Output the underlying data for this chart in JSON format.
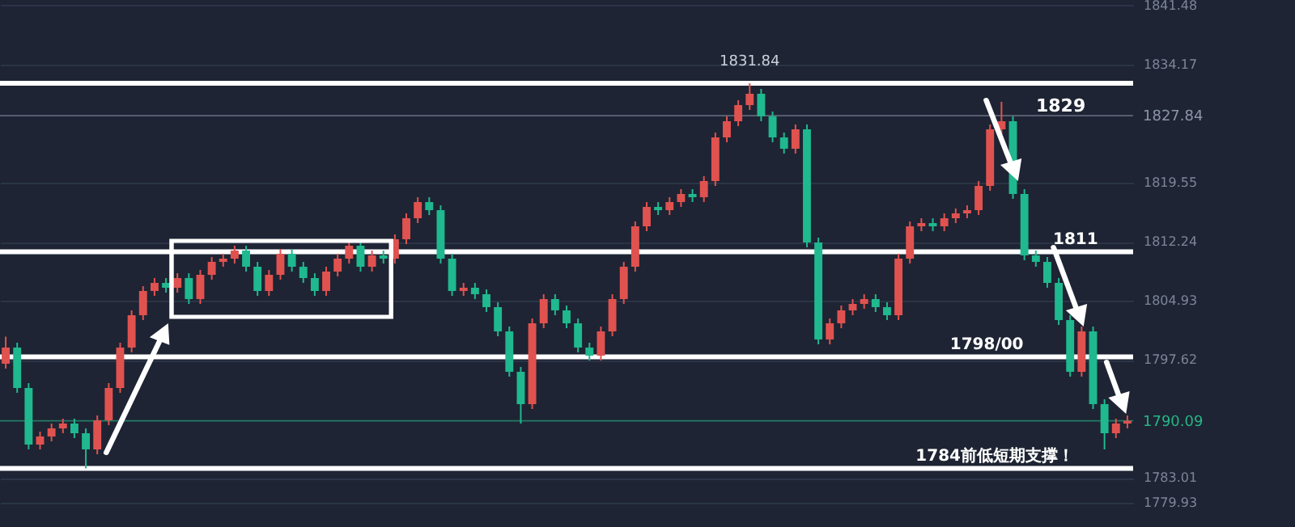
{
  "chart_data": {
    "type": "candlestick",
    "categories": [
      null,
      null,
      null,
      null,
      null,
      null,
      null,
      null,
      null,
      null,
      null,
      null,
      null,
      null,
      null,
      null,
      null,
      null,
      null,
      null,
      null,
      null,
      null,
      null,
      null,
      null,
      null,
      null,
      null,
      null,
      null,
      null,
      null,
      null,
      null,
      null,
      null,
      null,
      null,
      null,
      null,
      null,
      null,
      null,
      null,
      null,
      null,
      null,
      null,
      null,
      null,
      null,
      null,
      null,
      null,
      null,
      null,
      null,
      null,
      null,
      null,
      null,
      null,
      null,
      null,
      null,
      null,
      null,
      null,
      null,
      null,
      null,
      null,
      null,
      null,
      null,
      null,
      null,
      null,
      null,
      null,
      null,
      null,
      null,
      null,
      null,
      null,
      null,
      null,
      null,
      null,
      null,
      null,
      null,
      null,
      null,
      null,
      null,
      null
    ],
    "ohlc": [
      [
        1797.15,
        1800.5,
        1796.55,
        1799.15
      ],
      [
        1799.15,
        1799.75,
        1793.55,
        1794.15
      ],
      [
        1794.15,
        1794.75,
        1786.55,
        1787.15
      ],
      [
        1787.15,
        1788.75,
        1786.55,
        1788.15
      ],
      [
        1788.15,
        1789.75,
        1787.55,
        1789.15
      ],
      [
        1789.15,
        1790.35,
        1788.55,
        1789.75
      ],
      [
        1789.75,
        1790.35,
        1787.95,
        1788.55
      ],
      [
        1788.55,
        1789.15,
        1784.2,
        1786.55
      ],
      [
        1786.55,
        1790.75,
        1785.95,
        1790.15
      ],
      [
        1790.15,
        1794.75,
        1789.55,
        1794.15
      ],
      [
        1794.15,
        1799.75,
        1793.55,
        1799.15
      ],
      [
        1799.15,
        1803.75,
        1798.55,
        1803.15
      ],
      [
        1803.15,
        1806.75,
        1802.55,
        1806.15
      ],
      [
        1806.15,
        1807.75,
        1805.55,
        1807.15
      ],
      [
        1807.15,
        1807.75,
        1805.95,
        1806.55
      ],
      [
        1806.55,
        1808.35,
        1805.95,
        1807.75
      ],
      [
        1807.75,
        1808.35,
        1804.55,
        1805.15
      ],
      [
        1805.15,
        1808.75,
        1804.55,
        1808.15
      ],
      [
        1808.15,
        1810.35,
        1807.55,
        1809.75
      ],
      [
        1809.75,
        1810.75,
        1809.15,
        1810.15
      ],
      [
        1810.15,
        1811.75,
        1809.55,
        1811.15
      ],
      [
        1811.15,
        1811.75,
        1808.55,
        1809.15
      ],
      [
        1809.15,
        1809.75,
        1805.55,
        1806.15
      ],
      [
        1806.15,
        1808.75,
        1805.55,
        1808.15
      ],
      [
        1808.15,
        1811.35,
        1807.55,
        1810.75
      ],
      [
        1810.75,
        1811.35,
        1808.55,
        1809.15
      ],
      [
        1809.15,
        1809.75,
        1807.15,
        1807.75
      ],
      [
        1807.75,
        1808.35,
        1805.55,
        1806.15
      ],
      [
        1806.15,
        1809.15,
        1805.55,
        1808.55
      ],
      [
        1808.55,
        1810.75,
        1807.95,
        1810.15
      ],
      [
        1810.15,
        1812.35,
        1809.55,
        1811.75
      ],
      [
        1811.75,
        1812.35,
        1808.55,
        1809.15
      ],
      [
        1809.15,
        1811.15,
        1808.55,
        1810.55
      ],
      [
        1810.55,
        1811.15,
        1809.55,
        1810.15
      ],
      [
        1810.15,
        1813.15,
        1809.55,
        1812.55
      ],
      [
        1812.55,
        1815.75,
        1811.95,
        1815.15
      ],
      [
        1815.15,
        1817.75,
        1814.55,
        1817.15
      ],
      [
        1817.15,
        1817.75,
        1815.55,
        1816.15
      ],
      [
        1816.15,
        1816.75,
        1809.55,
        1810.15
      ],
      [
        1810.15,
        1810.75,
        1805.55,
        1806.15
      ],
      [
        1806.15,
        1807.15,
        1805.55,
        1806.55
      ],
      [
        1806.55,
        1807.15,
        1805.15,
        1805.75
      ],
      [
        1805.75,
        1806.35,
        1803.55,
        1804.15
      ],
      [
        1804.15,
        1804.75,
        1800.55,
        1801.15
      ],
      [
        1801.15,
        1801.75,
        1795.55,
        1796.15
      ],
      [
        1796.15,
        1796.75,
        1789.75,
        1792.15
      ],
      [
        1792.15,
        1802.75,
        1791.55,
        1802.15
      ],
      [
        1802.15,
        1805.75,
        1801.55,
        1805.15
      ],
      [
        1805.15,
        1805.75,
        1803.15,
        1803.75
      ],
      [
        1803.75,
        1804.35,
        1801.55,
        1802.15
      ],
      [
        1802.15,
        1802.75,
        1798.55,
        1799.15
      ],
      [
        1799.15,
        1799.75,
        1797.55,
        1798.15
      ],
      [
        1798.15,
        1801.75,
        1797.55,
        1801.15
      ],
      [
        1801.15,
        1805.75,
        1800.55,
        1805.15
      ],
      [
        1805.15,
        1809.75,
        1804.55,
        1809.15
      ],
      [
        1809.15,
        1814.75,
        1808.55,
        1814.15
      ],
      [
        1814.15,
        1817.15,
        1813.55,
        1816.55
      ],
      [
        1816.55,
        1817.15,
        1815.55,
        1816.15
      ],
      [
        1816.15,
        1817.75,
        1815.55,
        1817.15
      ],
      [
        1817.15,
        1818.75,
        1816.55,
        1818.15
      ],
      [
        1818.15,
        1818.75,
        1817.15,
        1817.75
      ],
      [
        1817.75,
        1820.35,
        1817.15,
        1819.75
      ],
      [
        1819.75,
        1825.75,
        1819.15,
        1825.15
      ],
      [
        1825.15,
        1827.75,
        1824.55,
        1827.15
      ],
      [
        1827.15,
        1829.75,
        1826.55,
        1829.15
      ],
      [
        1829.15,
        1831.84,
        1828.55,
        1830.55
      ],
      [
        1830.55,
        1831.15,
        1827.15,
        1827.75
      ],
      [
        1827.75,
        1828.35,
        1824.55,
        1825.15
      ],
      [
        1825.15,
        1825.75,
        1823.15,
        1823.75
      ],
      [
        1823.75,
        1826.75,
        1823.15,
        1826.15
      ],
      [
        1826.15,
        1826.75,
        1811.55,
        1812.15
      ],
      [
        1812.15,
        1812.75,
        1799.55,
        1800.15
      ],
      [
        1800.15,
        1802.75,
        1799.55,
        1802.15
      ],
      [
        1802.15,
        1804.35,
        1801.55,
        1803.75
      ],
      [
        1803.75,
        1805.15,
        1803.15,
        1804.55
      ],
      [
        1804.55,
        1805.75,
        1803.95,
        1805.15
      ],
      [
        1805.15,
        1805.75,
        1803.55,
        1804.15
      ],
      [
        1804.15,
        1804.75,
        1802.55,
        1803.15
      ],
      [
        1803.15,
        1810.75,
        1802.55,
        1810.15
      ],
      [
        1810.15,
        1814.75,
        1809.55,
        1814.15
      ],
      [
        1814.15,
        1815.15,
        1813.55,
        1814.55
      ],
      [
        1814.55,
        1815.15,
        1813.55,
        1814.15
      ],
      [
        1814.15,
        1815.75,
        1813.55,
        1815.15
      ],
      [
        1815.15,
        1816.35,
        1814.55,
        1815.75
      ],
      [
        1815.75,
        1816.75,
        1815.15,
        1816.15
      ],
      [
        1816.15,
        1819.75,
        1815.55,
        1819.15
      ],
      [
        1819.15,
        1826.75,
        1818.55,
        1826.15
      ],
      [
        1826.15,
        1829.55,
        1825.55,
        1827.15
      ],
      [
        1827.15,
        1827.75,
        1817.55,
        1818.15
      ],
      [
        1818.15,
        1818.75,
        1809.95,
        1810.55
      ],
      [
        1810.55,
        1811.15,
        1809.15,
        1809.75
      ],
      [
        1809.75,
        1810.35,
        1806.55,
        1807.15
      ],
      [
        1807.15,
        1807.75,
        1801.95,
        1802.55
      ],
      [
        1802.55,
        1803.15,
        1795.55,
        1796.15
      ],
      [
        1796.15,
        1801.75,
        1795.55,
        1801.15
      ],
      [
        1801.15,
        1801.75,
        1791.55,
        1792.15
      ],
      [
        1792.15,
        1792.75,
        1786.55,
        1788.55
      ],
      [
        1788.55,
        1790.35,
        1787.95,
        1789.75
      ],
      [
        1789.75,
        1790.75,
        1789.15,
        1790.09
      ]
    ],
    "ylim": [
      1776.95,
      1842.15
    ],
    "yticks": [
      1841.48,
      1834.17,
      1819.55,
      1812.24,
      1804.93,
      1797.62,
      1783.01,
      1779.93
    ],
    "grid": "y",
    "annotations": [
      {
        "text": "1831.84",
        "y": 1831.84
      },
      "1829"
    ],
    "ref_lines": [
      {
        "axis": "y",
        "value": 1827.84,
        "label": "1827.84",
        "color": "#8c95a8"
      },
      {
        "axis": "y",
        "value": 1790.09,
        "label": "1790.09",
        "color": "#26b585"
      },
      {
        "axis": "y",
        "value": 1831.84,
        "label": null,
        "color": "#ffffff"
      },
      {
        "axis": "y",
        "value": 1811,
        "label": "1811",
        "color": "#ffffff"
      },
      {
        "axis": "y",
        "value": 1798,
        "label": "1798/00",
        "color": "#ffffff"
      },
      {
        "axis": "y",
        "value": 1784.2,
        "label": "1784前低短期支撑！",
        "color": "#ffffff"
      }
    ]
  }
}
